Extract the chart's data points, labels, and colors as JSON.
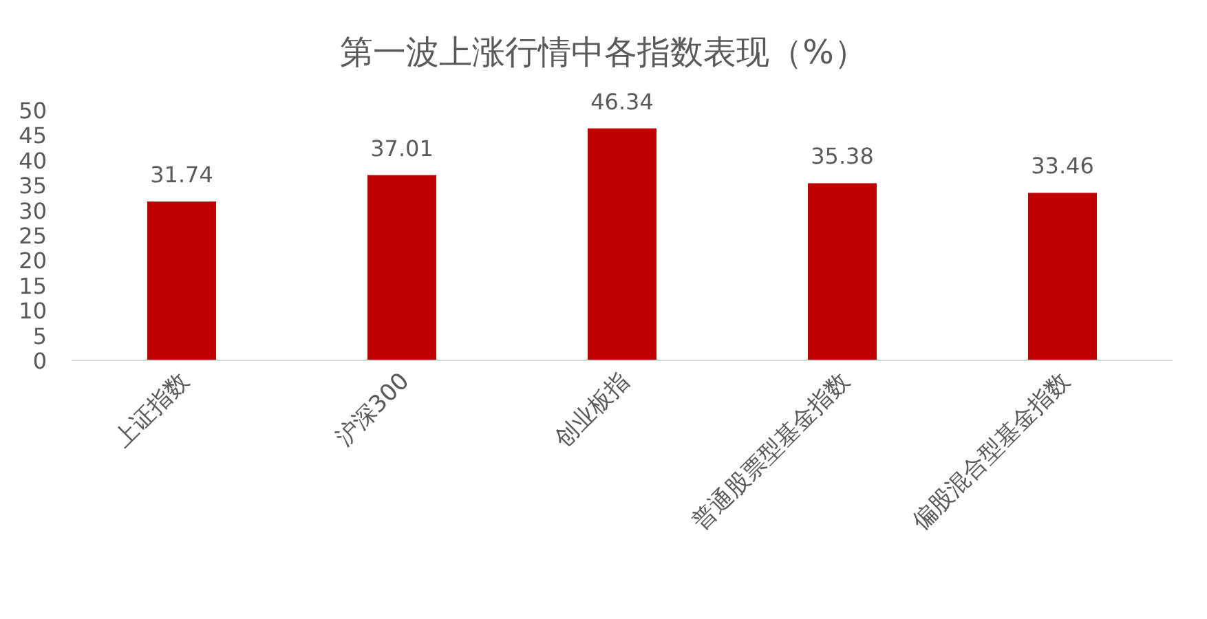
{
  "chart_data": {
    "type": "bar",
    "title": "第一波上涨行情中各指数表现（%）",
    "categories": [
      "上证指数",
      "沪深300",
      "创业板指",
      "普通股票型基金指数",
      "偏股混合型基金指数"
    ],
    "values": [
      31.74,
      37.01,
      46.34,
      35.38,
      33.46
    ],
    "color": "#c00000",
    "ylim": [
      0,
      50
    ],
    "yticks": [
      0,
      5,
      10,
      15,
      20,
      25,
      30,
      35,
      40,
      45,
      50
    ],
    "grid": false,
    "data_labels": true
  }
}
